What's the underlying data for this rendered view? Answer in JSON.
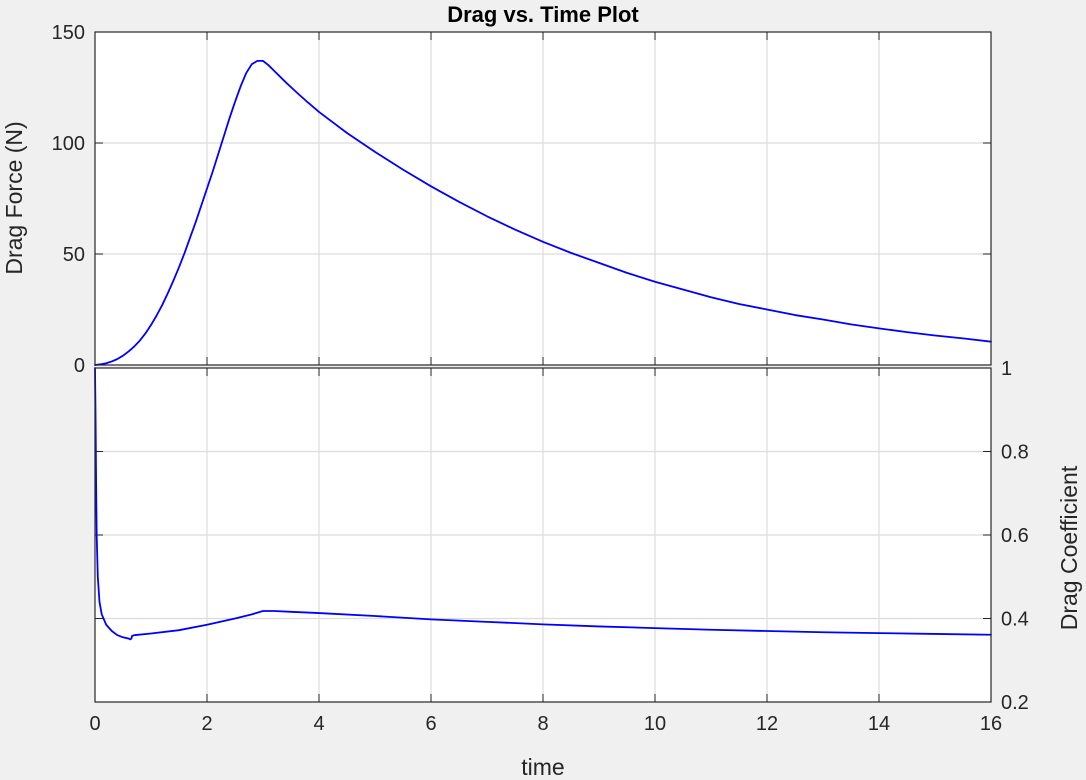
{
  "chart_data": [
    {
      "type": "line",
      "title": "Drag vs. Time Plot",
      "xlabel": "",
      "ylabel": "Drag Force (N)",
      "xlim": [
        0,
        16
      ],
      "ylim": [
        0,
        150
      ],
      "xticks": [
        0,
        2,
        4,
        6,
        8,
        10,
        12,
        14,
        16
      ],
      "yticks": [
        0,
        50,
        100,
        150
      ],
      "grid": true,
      "series": [
        {
          "color": "#0000ff",
          "x": [
            0,
            0.1,
            0.2,
            0.3,
            0.4,
            0.5,
            0.6,
            0.7,
            0.8,
            0.9,
            1.0,
            1.1,
            1.2,
            1.3,
            1.4,
            1.5,
            1.6,
            1.7,
            1.8,
            1.9,
            2.0,
            2.1,
            2.2,
            2.3,
            2.4,
            2.5,
            2.6,
            2.7,
            2.8,
            2.9,
            3.0,
            3.1,
            3.2,
            3.4,
            3.6,
            3.8,
            4.0,
            4.5,
            5.0,
            5.5,
            6.0,
            6.5,
            7.0,
            7.5,
            8.0,
            8.5,
            9.0,
            9.5,
            10.0,
            10.5,
            11.0,
            11.5,
            12.0,
            12.5,
            13.0,
            13.5,
            14.0,
            14.5,
            15.0,
            15.5,
            16.0
          ],
          "y": [
            0,
            0.3,
            0.8,
            1.6,
            2.7,
            4.2,
            6.1,
            8.3,
            11.0,
            14.2,
            18.0,
            22.3,
            27.0,
            32.3,
            38.0,
            44.0,
            50.5,
            57.5,
            64.5,
            72.0,
            79.5,
            87.0,
            95.0,
            103.0,
            111.0,
            118.5,
            125.5,
            131.5,
            135.5,
            137.0,
            137.0,
            135.0,
            132.5,
            127.5,
            122.8,
            118.3,
            114.0,
            104.5,
            96.0,
            88.0,
            80.5,
            73.5,
            67.0,
            61.0,
            55.5,
            50.5,
            46.0,
            41.5,
            37.5,
            34.0,
            30.5,
            27.5,
            25.0,
            22.5,
            20.5,
            18.3,
            16.5,
            14.8,
            13.3,
            12.0,
            10.5
          ]
        }
      ]
    },
    {
      "type": "line",
      "title": "",
      "xlabel": "time",
      "ylabel": "Drag Coefficient",
      "ylabel_side": "right",
      "xlim": [
        0,
        16
      ],
      "ylim": [
        0.2,
        1
      ],
      "xticks": [
        0,
        2,
        4,
        6,
        8,
        10,
        12,
        14,
        16
      ],
      "yticks": [
        0.2,
        0.4,
        0.6,
        0.8,
        1
      ],
      "ytick_labels": [
        "0.2",
        "0.4",
        "0.6",
        "0.8",
        "1"
      ],
      "grid": true,
      "series": [
        {
          "color": "#0000ff",
          "x": [
            0,
            0.01,
            0.02,
            0.03,
            0.05,
            0.08,
            0.12,
            0.2,
            0.3,
            0.4,
            0.5,
            0.6,
            0.63,
            0.65,
            0.66,
            0.7,
            1.0,
            1.5,
            2.0,
            2.5,
            2.8,
            3.0,
            3.2,
            3.5,
            4.0,
            5.0,
            6.0,
            7.0,
            8.0,
            9.0,
            10.0,
            11.0,
            12.0,
            13.0,
            14.0,
            15.0,
            16.0
          ],
          "y": [
            1.0,
            0.88,
            0.72,
            0.6,
            0.5,
            0.44,
            0.41,
            0.385,
            0.37,
            0.36,
            0.355,
            0.352,
            0.35,
            0.352,
            0.358,
            0.36,
            0.364,
            0.372,
            0.385,
            0.4,
            0.41,
            0.418,
            0.418,
            0.416,
            0.413,
            0.406,
            0.398,
            0.392,
            0.386,
            0.381,
            0.377,
            0.373,
            0.37,
            0.367,
            0.365,
            0.363,
            0.361
          ]
        }
      ]
    }
  ]
}
